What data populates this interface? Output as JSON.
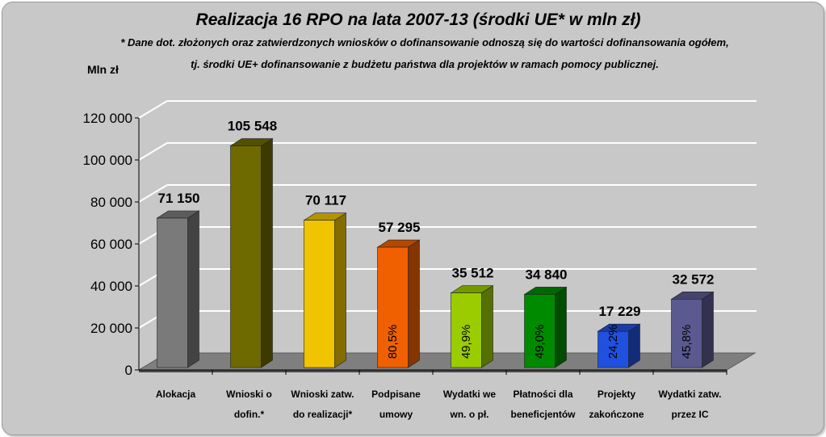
{
  "chart_data": {
    "type": "bar",
    "title": "Realizacja 16 RPO na lata 2007-13 (środki UE* w mln zł)",
    "note_lines": [
      "* Dane dot. złożonych oraz zatwierdzonych wniosków o dofinansowanie odnoszą się do wartości dofinansowania ogółem,",
      "tj. środki UE+ dofinansowanie z budżetu państwa dla projektów w ramach pomocy publicznej."
    ],
    "ylabel": "Mln zł",
    "ylim": [
      0,
      120000
    ],
    "yticks": [
      0,
      20000,
      40000,
      60000,
      80000,
      100000,
      120000
    ],
    "ytick_labels": [
      "0",
      "20 000",
      "40 000",
      "60 000",
      "80 000",
      "100 000",
      "120 000"
    ],
    "grid": true,
    "categories": [
      [
        "Alokacja"
      ],
      [
        "Wnioski o",
        "dofin.*"
      ],
      [
        "Wnioski zatw.",
        "do realizacji*"
      ],
      [
        "Podpisane",
        "umowy"
      ],
      [
        "Wydatki we",
        "wn. o pł."
      ],
      [
        "Płatności dla",
        "beneficjentów"
      ],
      [
        "Projekty",
        "zakończone"
      ],
      [
        "Wydatki zatw.",
        "przez IC"
      ]
    ],
    "values": [
      71150,
      105548,
      70117,
      57295,
      35512,
      34840,
      17229,
      32572
    ],
    "value_labels": [
      "71 150",
      "105 548",
      "70 117",
      "57 295",
      "35 512",
      "34 840",
      "17 229",
      "32 572"
    ],
    "percent_labels": [
      "",
      "",
      "",
      "80,5%",
      "49,9%",
      "49,0%",
      "24,2%",
      "45,8%"
    ],
    "colors": [
      "#7a7a7a",
      "#6e6a00",
      "#f0c400",
      "#f06000",
      "#9acc00",
      "#008a00",
      "#2050e0",
      "#5a5a90"
    ]
  }
}
